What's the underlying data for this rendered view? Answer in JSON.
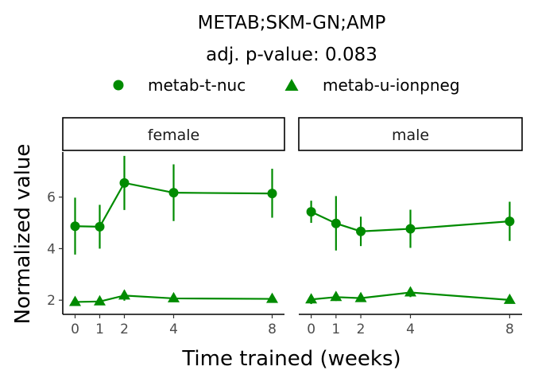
{
  "chart_data": {
    "type": "line",
    "title": "METAB;SKM-GN;AMP",
    "subtitle": "adj. p-value: 0.083",
    "xlabel": "Time trained (weeks)",
    "ylabel": "Normalized value",
    "x_ticks": [
      0,
      1,
      2,
      4,
      8
    ],
    "y_ticks": [
      2,
      4,
      6
    ],
    "xlim": [
      -0.5,
      8.5
    ],
    "ylim": [
      1.45,
      7.75
    ],
    "legend_position": "top",
    "color": "#008b00",
    "legend": [
      {
        "name": "metab-t-nuc",
        "shape": "circle"
      },
      {
        "name": "metab-u-ionpneg",
        "shape": "triangle"
      }
    ],
    "panels": [
      {
        "label": "female",
        "series": [
          {
            "name": "metab-t-nuc",
            "shape": "circle",
            "x": [
              0,
              1,
              2,
              4,
              8
            ],
            "y": [
              4.87,
              4.85,
              6.55,
              6.17,
              6.14
            ],
            "ymin": [
              3.77,
              4.0,
              5.5,
              5.07,
              5.2
            ],
            "ymax": [
              5.98,
              5.7,
              7.6,
              7.27,
              7.1
            ]
          },
          {
            "name": "metab-u-ionpneg",
            "shape": "triangle",
            "x": [
              0,
              1,
              2,
              4,
              8
            ],
            "y": [
              1.93,
              1.95,
              2.18,
              2.07,
              2.05
            ],
            "ymin": [
              1.85,
              1.88,
              1.98,
              1.97,
              1.9
            ],
            "ymax": [
              2.01,
              2.02,
              2.38,
              2.17,
              2.2
            ]
          }
        ]
      },
      {
        "label": "male",
        "series": [
          {
            "name": "metab-t-nuc",
            "shape": "circle",
            "x": [
              0,
              1,
              2,
              4,
              8
            ],
            "y": [
              5.43,
              4.98,
              4.67,
              4.77,
              5.06
            ],
            "ymin": [
              5.0,
              3.93,
              4.1,
              4.03,
              4.3
            ],
            "ymax": [
              5.86,
              6.04,
              5.24,
              5.51,
              5.82
            ]
          },
          {
            "name": "metab-u-ionpneg",
            "shape": "triangle",
            "x": [
              0,
              1,
              2,
              4,
              8
            ],
            "y": [
              2.03,
              2.12,
              2.08,
              2.3,
              2.01
            ],
            "ymin": [
              1.85,
              1.97,
              1.95,
              2.12,
              1.9
            ],
            "ymax": [
              2.21,
              2.27,
              2.21,
              2.48,
              2.12
            ]
          }
        ]
      }
    ]
  }
}
